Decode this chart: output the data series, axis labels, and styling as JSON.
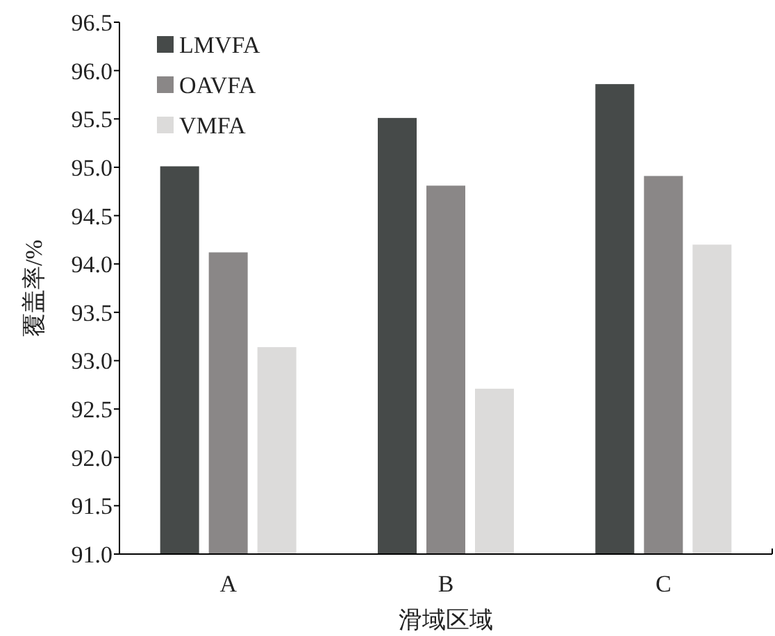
{
  "chart_data": {
    "type": "bar",
    "xlabel": "滑域区域",
    "ylabel": "覆盖率/%",
    "categories": [
      "A",
      "B",
      "C"
    ],
    "series": [
      {
        "name": "LMVFA",
        "color": "#464a49",
        "values": [
          95.01,
          95.51,
          95.86
        ]
      },
      {
        "name": "OAVFA",
        "color": "#8a8787",
        "values": [
          94.12,
          94.81,
          94.91
        ]
      },
      {
        "name": "VMFA",
        "color": "#dcdbda",
        "values": [
          93.14,
          92.71,
          94.2
        ]
      }
    ],
    "ylim": [
      91.0,
      96.5
    ],
    "yticks": [
      {
        "value": 91,
        "label": "91.0"
      },
      {
        "value": 91.5,
        "label": "91.5"
      },
      {
        "value": 92,
        "label": "92.0"
      },
      {
        "value": 92.5,
        "label": "92.5"
      },
      {
        "value": 93,
        "label": "93.0"
      },
      {
        "value": 93.5,
        "label": "93.5"
      },
      {
        "value": 94,
        "label": "94.0"
      },
      {
        "value": 94.5,
        "label": "94.5"
      },
      {
        "value": 95,
        "label": "95.0"
      },
      {
        "value": 95.5,
        "label": "95.5"
      },
      {
        "value": 96,
        "label": "96.0"
      },
      {
        "value": 96.5,
        "label": "96.5"
      }
    ],
    "grid": false,
    "legend": "top left"
  }
}
